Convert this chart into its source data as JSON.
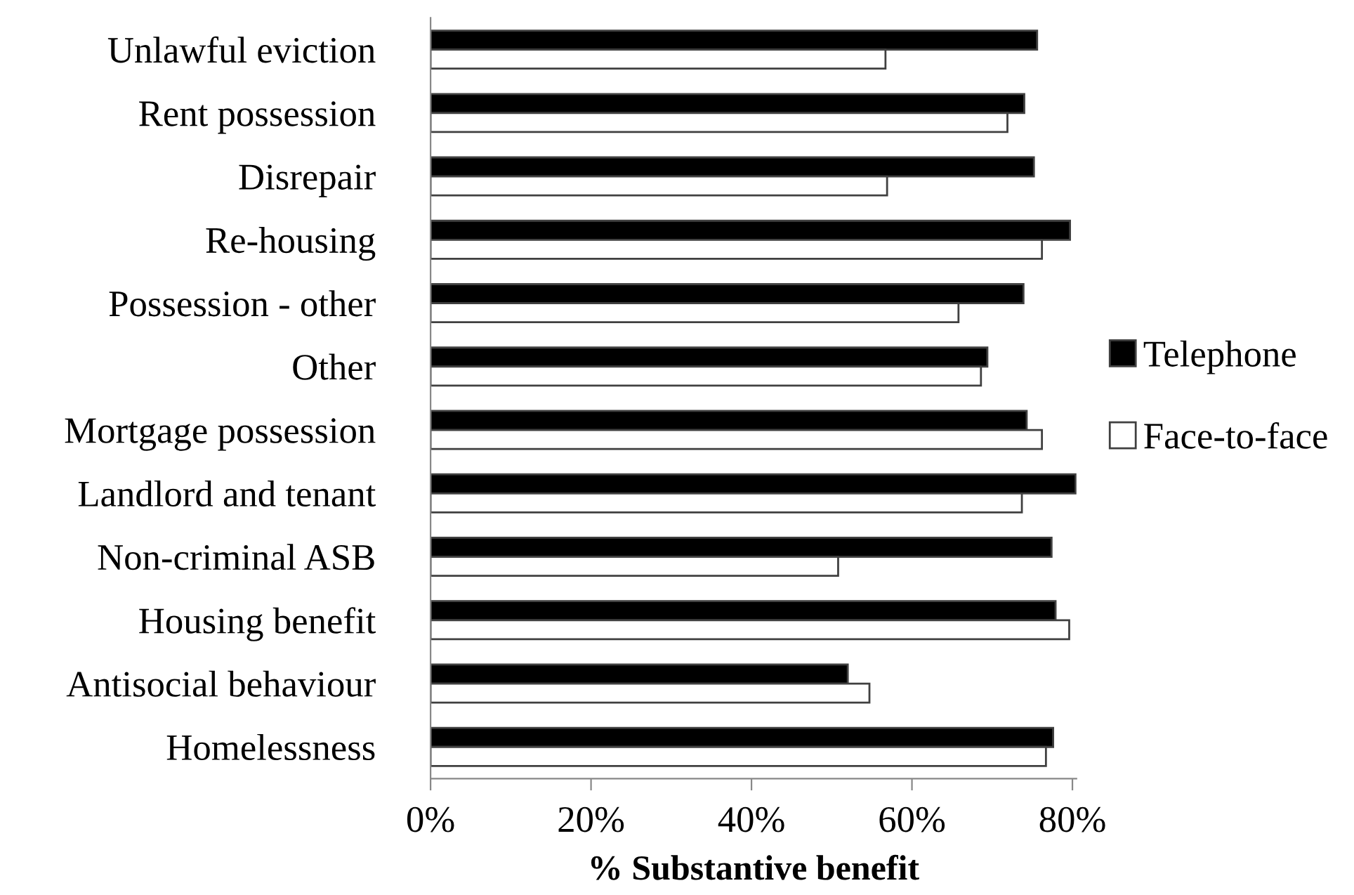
{
  "chart_data": {
    "type": "bar",
    "orientation": "horizontal",
    "xlabel": "% Substantive benefit",
    "categories": [
      "Unlawful eviction",
      "Rent possession",
      "Disrepair",
      "Re-housing",
      "Possession - other",
      "Other",
      "Mortgage possession",
      "Landlord and tenant",
      "Non-criminal ASB",
      "Housing benefit",
      "Antisocial behaviour",
      "Homelessness"
    ],
    "series": [
      {
        "name": "Telephone",
        "color": "#000000",
        "values": [
          75.6,
          74.0,
          75.2,
          79.7,
          73.9,
          69.4,
          74.3,
          80.4,
          77.4,
          77.9,
          52.0,
          77.6
        ]
      },
      {
        "name": "Face-to-face",
        "color": "#ffffff",
        "values": [
          56.7,
          71.9,
          56.9,
          76.2,
          65.8,
          68.6,
          76.2,
          73.7,
          50.8,
          79.6,
          54.7,
          76.7
        ]
      }
    ],
    "xlim": [
      0,
      80.5
    ],
    "xticks": [
      {
        "value": 0,
        "label": "0%"
      },
      {
        "value": 20,
        "label": "20%"
      },
      {
        "value": 40,
        "label": "40%"
      },
      {
        "value": 60,
        "label": "60%"
      },
      {
        "value": 80,
        "label": "80%"
      }
    ],
    "grid": false,
    "legend": "right"
  }
}
